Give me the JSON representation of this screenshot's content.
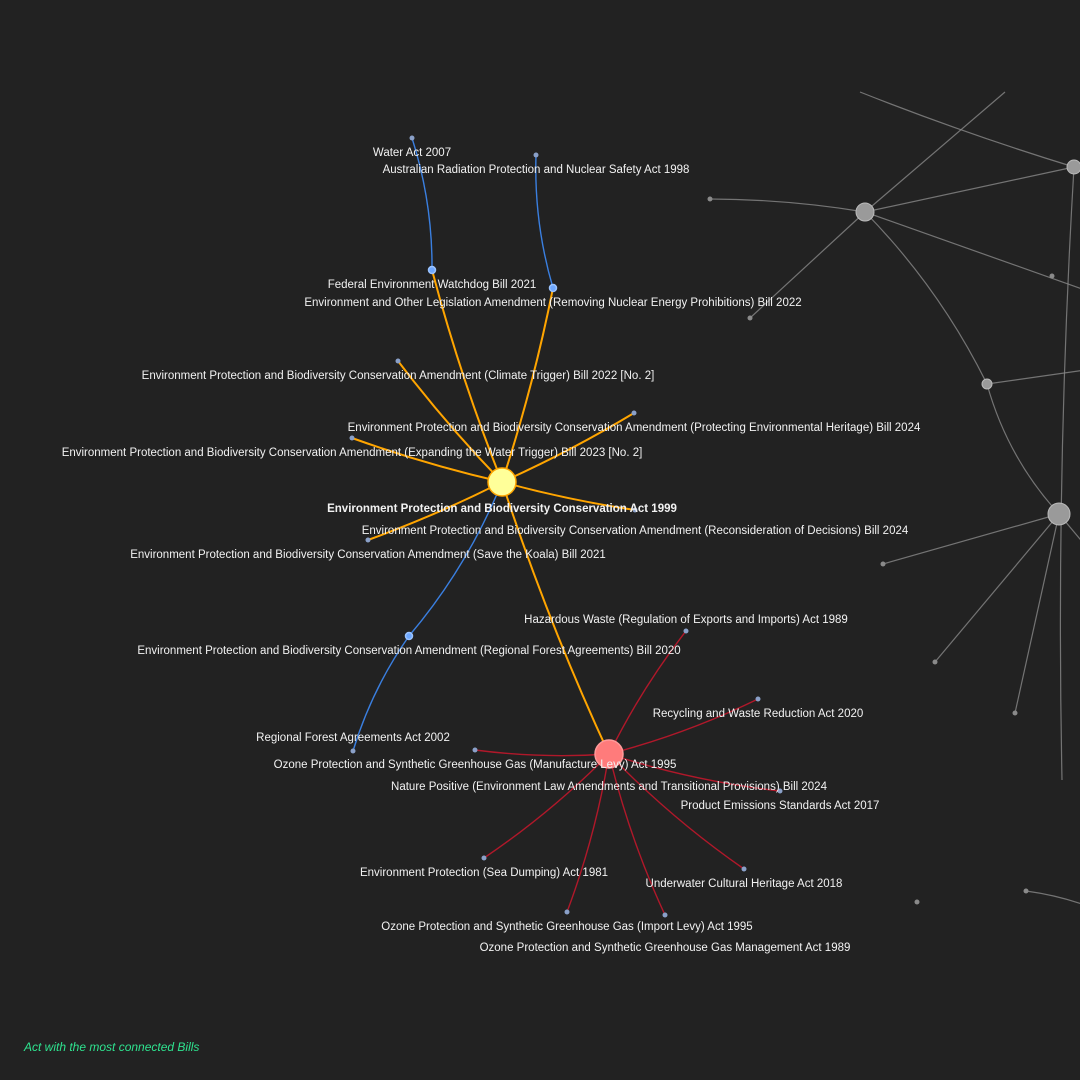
{
  "caption": "Act with the most connected Bills",
  "colors": {
    "background": "#222222",
    "main_node": "#ffff99",
    "main_edge": "#ffa500",
    "blue_edge": "#3a7fe0",
    "blue_node": "#6ea8ff",
    "red_edge": "#b0182a",
    "red_hub": "#ff7b7b",
    "grey": "#8a8a8a",
    "caption": "#2ee38f"
  },
  "nodes": [
    {
      "id": "epbc",
      "label": "Environment Protection and Biodiversity Conservation Act 1999",
      "kind": "main"
    },
    {
      "id": "watchdog",
      "label": "Federal Environment Watchdog Bill 2021",
      "kind": "blue"
    },
    {
      "id": "nuclear",
      "label": "Environment and Other Legislation Amendment (Removing Nuclear Energy Prohibitions) Bill 2022",
      "kind": "blue"
    },
    {
      "id": "water",
      "label": "Water Act 2007",
      "kind": "leaf"
    },
    {
      "id": "arpans",
      "label": "Australian Radiation Protection and Nuclear Safety Act 1998",
      "kind": "leaf"
    },
    {
      "id": "climate",
      "label": "Environment Protection and Biodiversity Conservation Amendment (Climate Trigger) Bill 2022 [No. 2]",
      "kind": "leaf"
    },
    {
      "id": "heritage",
      "label": "Environment Protection and Biodiversity Conservation Amendment (Protecting Environmental Heritage) Bill 2024",
      "kind": "leaf"
    },
    {
      "id": "watertrig",
      "label": "Environment Protection and Biodiversity Conservation Amendment (Expanding the Water Trigger) Bill 2023 [No. 2]",
      "kind": "leaf"
    },
    {
      "id": "reconsider",
      "label": "Environment Protection and Biodiversity Conservation Amendment (Reconsideration of Decisions) Bill 2024",
      "kind": "leaf"
    },
    {
      "id": "koala",
      "label": "Environment Protection and Biodiversity Conservation Amendment (Save the Koala) Bill 2021",
      "kind": "leaf"
    },
    {
      "id": "rfabill",
      "label": "Environment Protection and Biodiversity Conservation Amendment (Regional Forest Agreements) Bill 2020",
      "kind": "blue"
    },
    {
      "id": "rfaact",
      "label": "Regional Forest Agreements Act 2002",
      "kind": "leaf"
    },
    {
      "id": "nature",
      "label": "Nature Positive (Environment Law Amendments and Transitional Provisions) Bill 2024",
      "kind": "hub"
    },
    {
      "id": "hazard",
      "label": "Hazardous Waste (Regulation of Exports and Imports) Act 1989",
      "kind": "leaf"
    },
    {
      "id": "recycle",
      "label": "Recycling and Waste Reduction Act 2020",
      "kind": "leaf"
    },
    {
      "id": "ozmanu",
      "label": "Ozone Protection and Synthetic Greenhouse Gas (Manufacture Levy) Act 1995",
      "kind": "leaf"
    },
    {
      "id": "product",
      "label": "Product Emissions Standards Act 2017",
      "kind": "leaf"
    },
    {
      "id": "seadump",
      "label": "Environment Protection (Sea Dumping) Act 1981",
      "kind": "leaf"
    },
    {
      "id": "underwater",
      "label": "Underwater Cultural Heritage Act 2018",
      "kind": "leaf"
    },
    {
      "id": "ozimport",
      "label": "Ozone Protection and Synthetic Greenhouse Gas (Import Levy) Act 1995",
      "kind": "leaf"
    },
    {
      "id": "ozmgmt",
      "label": "Ozone Protection and Synthetic Greenhouse Gas Management Act 1989",
      "kind": "leaf"
    }
  ],
  "edges": [
    [
      "epbc",
      "watchdog",
      "main"
    ],
    [
      "epbc",
      "nuclear",
      "main"
    ],
    [
      "epbc",
      "climate",
      "main"
    ],
    [
      "epbc",
      "heritage",
      "main"
    ],
    [
      "epbc",
      "watertrig",
      "main"
    ],
    [
      "epbc",
      "reconsider",
      "main"
    ],
    [
      "epbc",
      "koala",
      "main"
    ],
    [
      "epbc",
      "nature",
      "main"
    ],
    [
      "epbc",
      "rfabill",
      "blue"
    ],
    [
      "watchdog",
      "water",
      "blue"
    ],
    [
      "nuclear",
      "arpans",
      "blue"
    ],
    [
      "rfabill",
      "rfaact",
      "blue"
    ],
    [
      "nature",
      "hazard",
      "red"
    ],
    [
      "nature",
      "recycle",
      "red"
    ],
    [
      "nature",
      "ozmanu",
      "red"
    ],
    [
      "nature",
      "product",
      "red"
    ],
    [
      "nature",
      "seadump",
      "red"
    ],
    [
      "nature",
      "underwater",
      "red"
    ],
    [
      "nature",
      "ozimport",
      "red"
    ],
    [
      "nature",
      "ozmgmt",
      "red"
    ]
  ]
}
